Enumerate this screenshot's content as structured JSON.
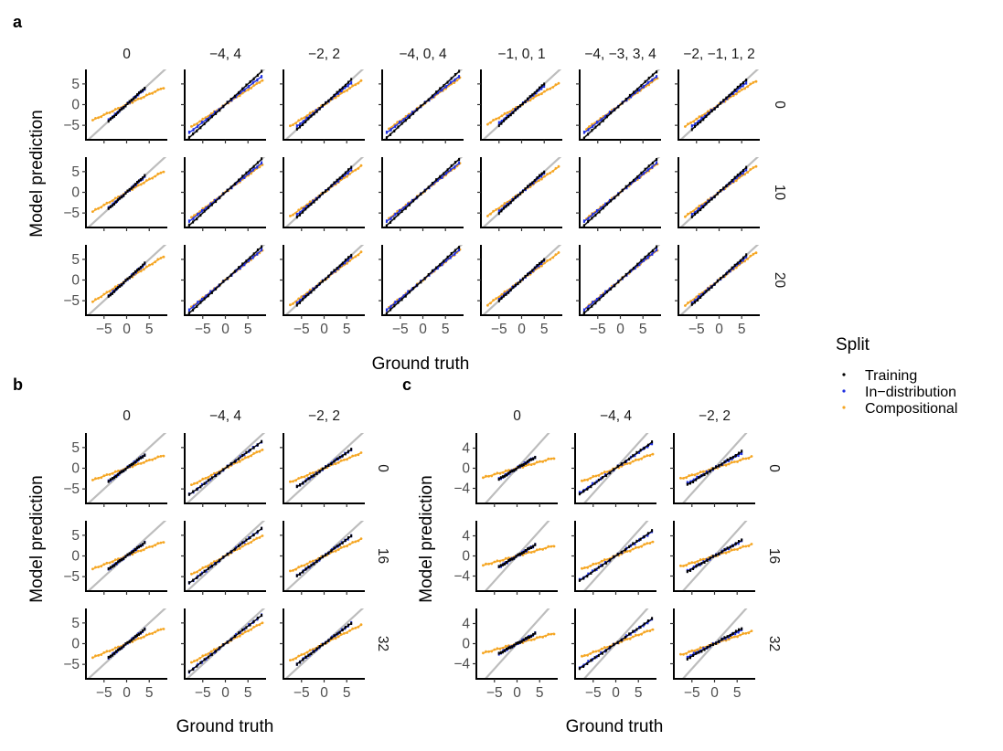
{
  "chart_data": [
    {
      "panel": "a",
      "type": "scatter",
      "facet_cols": [
        "0",
        "−4, 4",
        "−2, 2",
        "−4, 0, 4",
        "−1, 0, 1",
        "−4, −3, 3, 4",
        "−2, −1, 1, 2"
      ],
      "facet_rows": [
        "0",
        "10",
        "20"
      ],
      "xlabel": "Ground truth",
      "ylabel": "Model prediction",
      "xlim": [
        -9,
        9
      ],
      "ylim": [
        -8.5,
        8.5
      ],
      "xticks": [
        -5,
        0,
        5
      ],
      "yticks": [
        -5,
        0,
        5
      ],
      "xtick_labels": [
        "−5",
        "0",
        "5"
      ],
      "ytick_labels": [
        "−5",
        "0",
        "5"
      ],
      "reference_line": "y = x",
      "series": [
        {
          "name": "Training",
          "color": "#000000"
        },
        {
          "name": "In−distribution",
          "color": "#1f2fe0"
        },
        {
          "name": "Compositional",
          "color": "#f5a623"
        }
      ],
      "train_ranges": [
        [
          -4,
          4
        ],
        [
          -8,
          8
        ],
        [
          -6,
          6
        ],
        [
          -8,
          8
        ],
        [
          -5,
          5
        ],
        [
          -8,
          8
        ],
        [
          -6,
          6
        ]
      ],
      "slopes": {
        "train": [
          [
            1.0,
            1.0,
            1.0,
            1.0,
            1.0,
            1.0,
            1.0
          ],
          [
            1.0,
            1.0,
            1.0,
            1.0,
            1.0,
            1.0,
            1.0
          ],
          [
            1.0,
            1.0,
            1.0,
            1.0,
            1.0,
            1.0,
            1.0
          ]
        ],
        "in_dist": [
          [
            0.95,
            0.85,
            0.88,
            0.85,
            0.9,
            0.85,
            0.88
          ],
          [
            0.95,
            0.88,
            0.9,
            0.88,
            0.92,
            0.88,
            0.9
          ],
          [
            0.95,
            0.9,
            0.92,
            0.9,
            0.93,
            0.9,
            0.92
          ]
        ],
        "comp": [
          [
            0.5,
            0.72,
            0.7,
            0.78,
            0.62,
            0.78,
            0.7
          ],
          [
            0.62,
            0.82,
            0.78,
            0.84,
            0.75,
            0.84,
            0.78
          ],
          [
            0.7,
            0.88,
            0.82,
            0.88,
            0.8,
            0.88,
            0.82
          ]
        ]
      }
    },
    {
      "panel": "b",
      "type": "scatter",
      "facet_cols": [
        "0",
        "−4, 4",
        "−2, 2"
      ],
      "facet_rows": [
        "0",
        "16",
        "32"
      ],
      "xlabel": "Ground truth",
      "ylabel": "Model prediction",
      "xlim": [
        -9,
        9
      ],
      "ylim": [
        -8.5,
        8.5
      ],
      "xticks": [
        -5,
        0,
        5
      ],
      "yticks": [
        -5,
        0,
        5
      ],
      "xtick_labels": [
        "−5",
        "0",
        "5"
      ],
      "ytick_labels": [
        "−5",
        "0",
        "5"
      ],
      "reference_line": "y = x",
      "train_ranges": [
        [
          -4,
          4
        ],
        [
          -8,
          8
        ],
        [
          -6,
          6
        ]
      ],
      "slopes": {
        "train": [
          [
            0.8,
            0.8,
            0.75
          ],
          [
            0.8,
            0.82,
            0.8
          ],
          [
            0.85,
            0.85,
            0.82
          ]
        ],
        "in_dist": [
          [
            0.8,
            0.8,
            0.75
          ],
          [
            0.8,
            0.82,
            0.8
          ],
          [
            0.85,
            0.85,
            0.82
          ]
        ],
        "comp": [
          [
            0.38,
            0.55,
            0.45
          ],
          [
            0.42,
            0.6,
            0.5
          ],
          [
            0.45,
            0.62,
            0.55
          ]
        ]
      }
    },
    {
      "panel": "c",
      "type": "scatter",
      "facet_cols": [
        "0",
        "−4, 4",
        "−2, 2"
      ],
      "facet_rows": [
        "0",
        "16",
        "32"
      ],
      "xlabel": "Ground truth",
      "ylabel": "Model prediction",
      "xlim": [
        -9,
        9
      ],
      "ylim": [
        -7,
        7
      ],
      "xticks": [
        -5,
        0,
        5
      ],
      "yticks": [
        -4,
        0,
        4
      ],
      "xtick_labels": [
        "−5",
        "0",
        "5"
      ],
      "ytick_labels": [
        "−4",
        "0",
        "4"
      ],
      "reference_line": "y = x",
      "train_ranges": [
        [
          -4,
          4
        ],
        [
          -8,
          8
        ],
        [
          -6,
          6
        ]
      ],
      "slopes": {
        "train": [
          [
            0.55,
            0.65,
            0.55
          ],
          [
            0.55,
            0.62,
            0.52
          ],
          [
            0.5,
            0.62,
            0.5
          ]
        ],
        "in_dist": [
          [
            0.55,
            0.62,
            0.5
          ],
          [
            0.55,
            0.6,
            0.5
          ],
          [
            0.5,
            0.6,
            0.45
          ]
        ],
        "comp": [
          [
            0.25,
            0.35,
            0.28
          ],
          [
            0.25,
            0.35,
            0.28
          ],
          [
            0.25,
            0.35,
            0.3
          ]
        ]
      }
    }
  ],
  "legend": {
    "title": "Split",
    "items": [
      "Training",
      "In−distribution",
      "Compositional"
    ]
  }
}
